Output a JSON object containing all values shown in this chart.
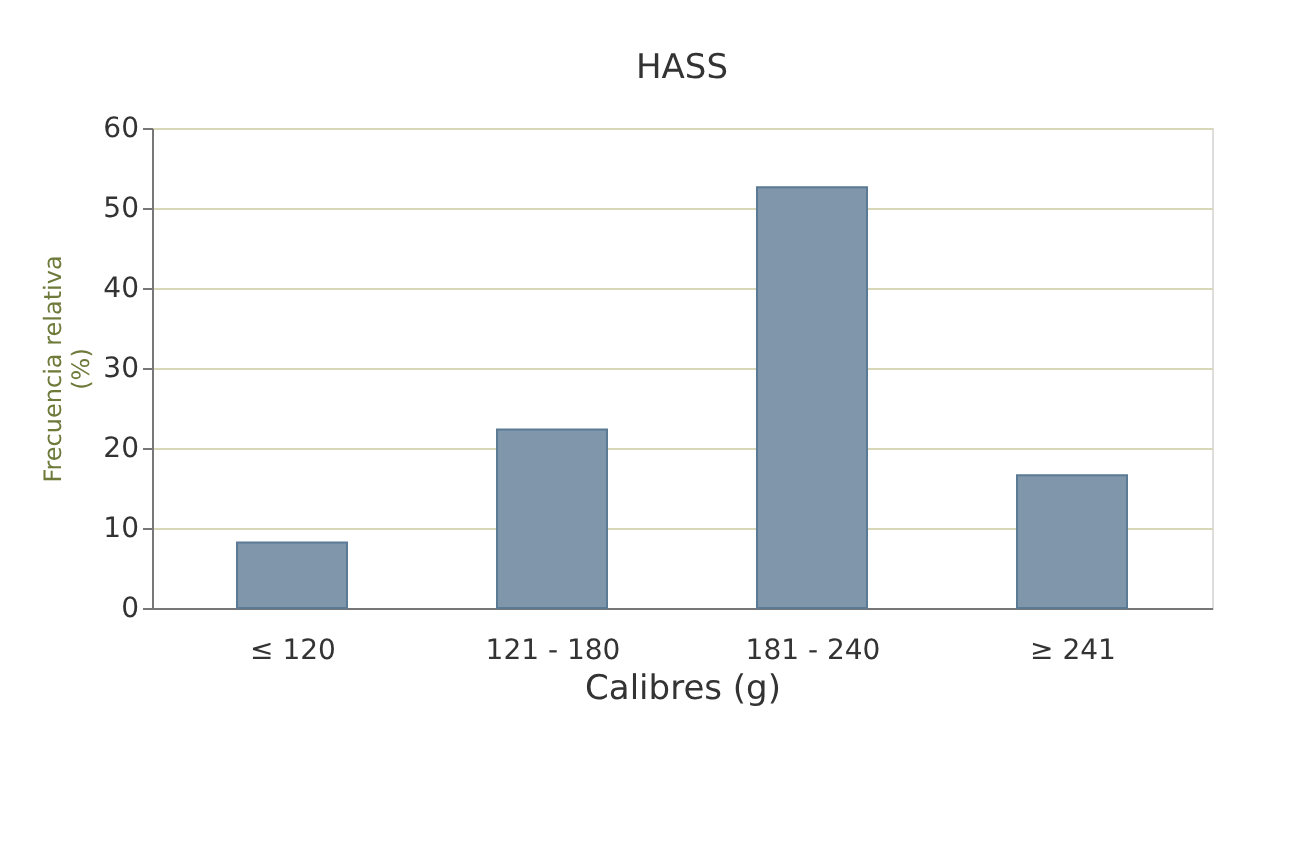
{
  "chart_data": {
    "type": "bar",
    "title": "HASS",
    "xlabel": "Calibres (g)",
    "ylabel": "Frecuencia relativa\n(%)",
    "categories": [
      "≤ 120",
      "121 - 180",
      "181 - 240",
      "≥ 241"
    ],
    "values": [
      8.2,
      22.3,
      52.6,
      16.6
    ],
    "color": "#7f96ab",
    "ylim": [
      0,
      60
    ],
    "yticks": [
      0,
      10,
      20,
      30,
      40,
      50,
      60
    ],
    "grid": "y"
  }
}
